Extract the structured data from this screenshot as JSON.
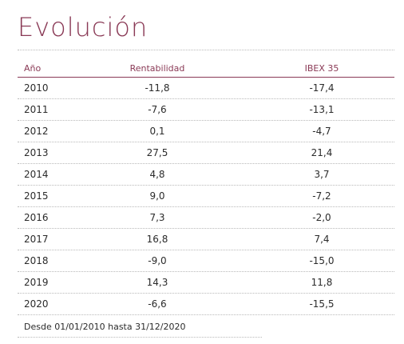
{
  "title": "Evolución",
  "table": {
    "headers": {
      "year": "Año",
      "rentabilidad": "Rentabilidad",
      "ibex": "IBEX 35"
    },
    "rows": [
      {
        "year": "2010",
        "rentabilidad": "-11,8",
        "ibex": "-17,4"
      },
      {
        "year": "2011",
        "rentabilidad": "-7,6",
        "ibex": "-13,1"
      },
      {
        "year": "2012",
        "rentabilidad": "0,1",
        "ibex": "-4,7"
      },
      {
        "year": "2013",
        "rentabilidad": "27,5",
        "ibex": "21,4"
      },
      {
        "year": "2014",
        "rentabilidad": "4,8",
        "ibex": "3,7"
      },
      {
        "year": "2015",
        "rentabilidad": "9,0",
        "ibex": "-7,2"
      },
      {
        "year": "2016",
        "rentabilidad": "7,3",
        "ibex": "-2,0"
      },
      {
        "year": "2017",
        "rentabilidad": "16,8",
        "ibex": "7,4"
      },
      {
        "year": "2018",
        "rentabilidad": "-9,0",
        "ibex": "-15,0"
      },
      {
        "year": "2019",
        "rentabilidad": "14,3",
        "ibex": "11,8"
      },
      {
        "year": "2020",
        "rentabilidad": "-6,6",
        "ibex": "-15,5"
      }
    ]
  },
  "footnote": "Desde 01/01/2010 hasta 31/12/2020",
  "colors": {
    "accent": "#8a3a56",
    "rule": "#b9b9b9",
    "text": "#2b2b2b"
  }
}
